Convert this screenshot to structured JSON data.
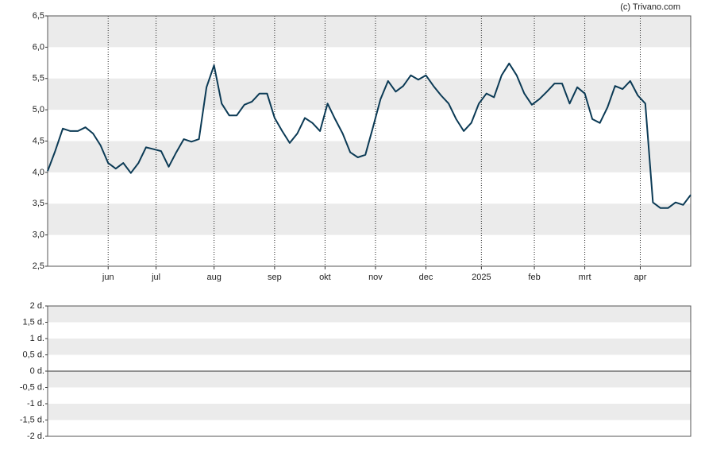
{
  "chart_data": [
    {
      "type": "line",
      "source": "(c) Trivano.com",
      "x": [
        0,
        3,
        6,
        9,
        12,
        15,
        18,
        21,
        24,
        27,
        30,
        33,
        36,
        39,
        42,
        45,
        48,
        51,
        54,
        57,
        60,
        63,
        66,
        69,
        72,
        75,
        78,
        81,
        84,
        87,
        90,
        93,
        96,
        99,
        102,
        105,
        108,
        111,
        114,
        117,
        120,
        123,
        126,
        129,
        132,
        135,
        138,
        141,
        144,
        147,
        150,
        153,
        156,
        159,
        162,
        165,
        168,
        171,
        174,
        177,
        180,
        183,
        186,
        189,
        192,
        195,
        198,
        201,
        204,
        207,
        210,
        213,
        216,
        219,
        222,
        225,
        228,
        231,
        234,
        237,
        240,
        243,
        246,
        249,
        252,
        255
      ],
      "series": [
        {
          "color": "#0b3a55",
          "values": [
            4.02,
            4.34,
            4.7,
            4.66,
            4.66,
            4.72,
            4.62,
            4.43,
            4.15,
            4.06,
            4.15,
            3.99,
            4.15,
            4.4,
            4.37,
            4.34,
            4.09,
            4.32,
            4.53,
            4.49,
            4.53,
            5.36,
            5.71,
            5.1,
            4.91,
            4.91,
            5.08,
            5.13,
            5.26,
            5.26,
            4.87,
            4.66,
            4.47,
            4.62,
            4.87,
            4.79,
            4.66,
            5.1,
            4.85,
            4.62,
            4.32,
            4.24,
            4.28,
            4.72,
            5.17,
            5.46,
            5.29,
            5.38,
            5.55,
            5.48,
            5.55,
            5.38,
            5.23,
            5.1,
            4.85,
            4.66,
            4.79,
            5.1,
            5.26,
            5.2,
            5.55,
            5.74,
            5.55,
            5.26,
            5.08,
            5.17,
            5.29,
            5.42,
            5.42,
            5.1,
            5.36,
            5.26,
            4.85,
            4.79,
            5.04,
            5.38,
            5.33,
            5.46,
            5.23,
            5.1,
            3.52,
            3.43,
            3.43,
            3.52,
            3.48,
            3.64
          ]
        }
      ],
      "xlim": [
        0,
        255
      ],
      "xticks": [
        {
          "value": 24,
          "label": "jun"
        },
        {
          "value": 43,
          "label": "jul"
        },
        {
          "value": 66,
          "label": "aug"
        },
        {
          "value": 90,
          "label": "sep"
        },
        {
          "value": 110,
          "label": "okt"
        },
        {
          "value": 130,
          "label": "nov"
        },
        {
          "value": 150,
          "label": "dec"
        },
        {
          "value": 172,
          "label": "2025"
        },
        {
          "value": 193,
          "label": "feb"
        },
        {
          "value": 213,
          "label": "mrt"
        },
        {
          "value": 235,
          "label": "apr"
        }
      ],
      "ylim": [
        2.5,
        6.5
      ],
      "yticks": [
        {
          "value": 2.5,
          "label": "2,5"
        },
        {
          "value": 3,
          "label": "3,0"
        },
        {
          "value": 3.5,
          "label": "3,5"
        },
        {
          "value": 4,
          "label": "4,0"
        },
        {
          "value": 4.5,
          "label": "4,5"
        },
        {
          "value": 5,
          "label": "5,0"
        },
        {
          "value": 5.5,
          "label": "5,5"
        },
        {
          "value": 6,
          "label": "6,0"
        },
        {
          "value": 6.5,
          "label": "6,5"
        }
      ],
      "grid": true
    },
    {
      "type": "bar",
      "ylim": [
        -2,
        2
      ],
      "yticks": [
        {
          "value": -2,
          "label": "-2 d."
        },
        {
          "value": -1.5,
          "label": "-1,5 d."
        },
        {
          "value": -1,
          "label": "-1 d."
        },
        {
          "value": -0.5,
          "label": "-0,5 d."
        },
        {
          "value": 0,
          "label": "0 d."
        },
        {
          "value": 0.5,
          "label": "0,5 d."
        },
        {
          "value": 1,
          "label": "1 d."
        },
        {
          "value": 1.5,
          "label": "1,5 d."
        },
        {
          "value": 2,
          "label": "2 d."
        }
      ],
      "grid": false
    }
  ]
}
